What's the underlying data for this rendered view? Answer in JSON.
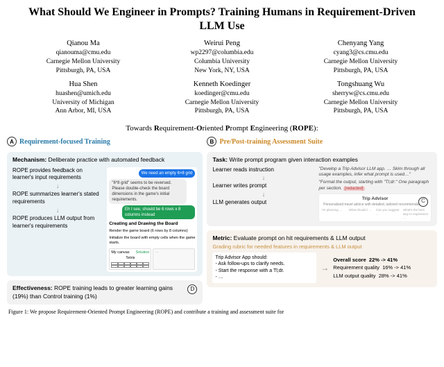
{
  "title": "What Should We Engineer in Prompts? Training Humans in Requirement-Driven LLM Use",
  "authors_row1": [
    {
      "name": "Qianou Ma",
      "email": "qianouma@cmu.edu",
      "affil": "Carnegie Mellon University",
      "loc": "Pittsburgh, PA, USA"
    },
    {
      "name": "Weirui Peng",
      "email": "wp2297@columbia.edu",
      "affil": "Columbia University",
      "loc": "New York, NY, USA"
    },
    {
      "name": "Chenyang Yang",
      "email": "cyang3@cs.cmu.edu",
      "affil": "Carnegie Mellon University",
      "loc": "Pittsburgh, PA, USA"
    }
  ],
  "authors_row2": [
    {
      "name": "Hua Shen",
      "email": "huashen@umich.edu",
      "affil": "University of Michigan",
      "loc": "Ann Arbor, MI, USA"
    },
    {
      "name": "Kenneth Koedinger",
      "email": "koedinger@cmu.edu",
      "affil": "Carnegie Mellon University",
      "loc": "Pittsburgh, PA, USA"
    },
    {
      "name": "Tongshuang Wu",
      "email": "sherryw@cs.cmu.edu",
      "affil": "Carnegie Mellon University",
      "loc": "Pittsburgh, PA, USA"
    }
  ],
  "rope": {
    "prefix": "Towards ",
    "r": "R",
    "r_rest": "equirement-",
    "o": "O",
    "o_rest": "riented ",
    "p": "P",
    "p_rest": "rompt ",
    "e": "E",
    "e_rest": "ngineering (",
    "acronym": "ROPE",
    "suffix": "):"
  },
  "labelA": {
    "letter": "A",
    "text": "Requirement-focused Training"
  },
  "labelB": {
    "letter": "B",
    "text": "Pre/Post-training Assessment Suite"
  },
  "mechanism": {
    "heading": "Mechanism:",
    "headtext": " Deliberate practice with automated feedback",
    "steps": [
      "ROPE provides feedback on learner's input requirements",
      "ROPE summarizes learner's stated requirements",
      "ROPE produces LLM output from learner's requirements"
    ],
    "chat": {
      "user1": "We need an empty 6×8 grid",
      "sys1": "\"6*8 grid\" seems to be reversed. Please double-check the board dimensions in the game's initial requirements.",
      "user2": "Eh I see, should be 6 rows x 8 columns instead",
      "h1": "Creating and Drawing the Board",
      "l1": "Render the game board (6 rows by 8 columns)",
      "l2": "Initialize the board with empty cells when the game starts.",
      "canvas_label": "My canvas",
      "sol_label": "Solution",
      "tetris": "Tetris"
    }
  },
  "effectiveness": {
    "heading": "Effectiveness:",
    "text": " ROPE training leads to greater learning gains (19%) than Control training (1%)",
    "letter": "D"
  },
  "task": {
    "heading": "Task:",
    "headtext": " Write prompt program given interaction examples",
    "steps": [
      "Learner reads instruction",
      "Learner writes prompt",
      "LLM generates output"
    ],
    "quote1": "\"Develop a Trip Advisor LLM app. … Skim through all usage examples, infer what prompt is used…\"",
    "quote2a": "\"Format the output, starting with \"Tl;dr:\" One paragraph per section. ",
    "quote2_redacted": "[redacted]",
    "trip_title": "Trip Advisor",
    "trip_sub": "Personalized travel advice with detailed, tailored recommendations.",
    "trip_c1": "I'm planning …",
    "trip_c2": "What should I …",
    "trip_c3": "Can you suggest …",
    "trip_c4": "What's the best way to experience …",
    "letter": "C"
  },
  "metric": {
    "heading": "Metric:",
    "headtext": " Evaluate prompt on hit requirements & LLM output",
    "grading": "Grading rubric for needed features in requirements & LLM output",
    "left_title": "Trip Advisor App should:",
    "left_l1": "- Ask follow-ups to clarify needs.",
    "left_l2": "- Start the response with a Tl;dr.",
    "left_l3": "- …",
    "r1a": "Overall score",
    "r1b": "22% -> 41%",
    "r2a": "Requirement quality",
    "r2b": "16% -> 41%",
    "r3a": "LLM output quality",
    "r3b": "28% -> 41%"
  },
  "caption": "Figure 1: We propose Requirement-Oriented Prompt Engineering (ROPE) and contribute a training and assessment suite for",
  "colors": {
    "blue": "#2a7aa8",
    "orange": "#cc8a2a"
  }
}
